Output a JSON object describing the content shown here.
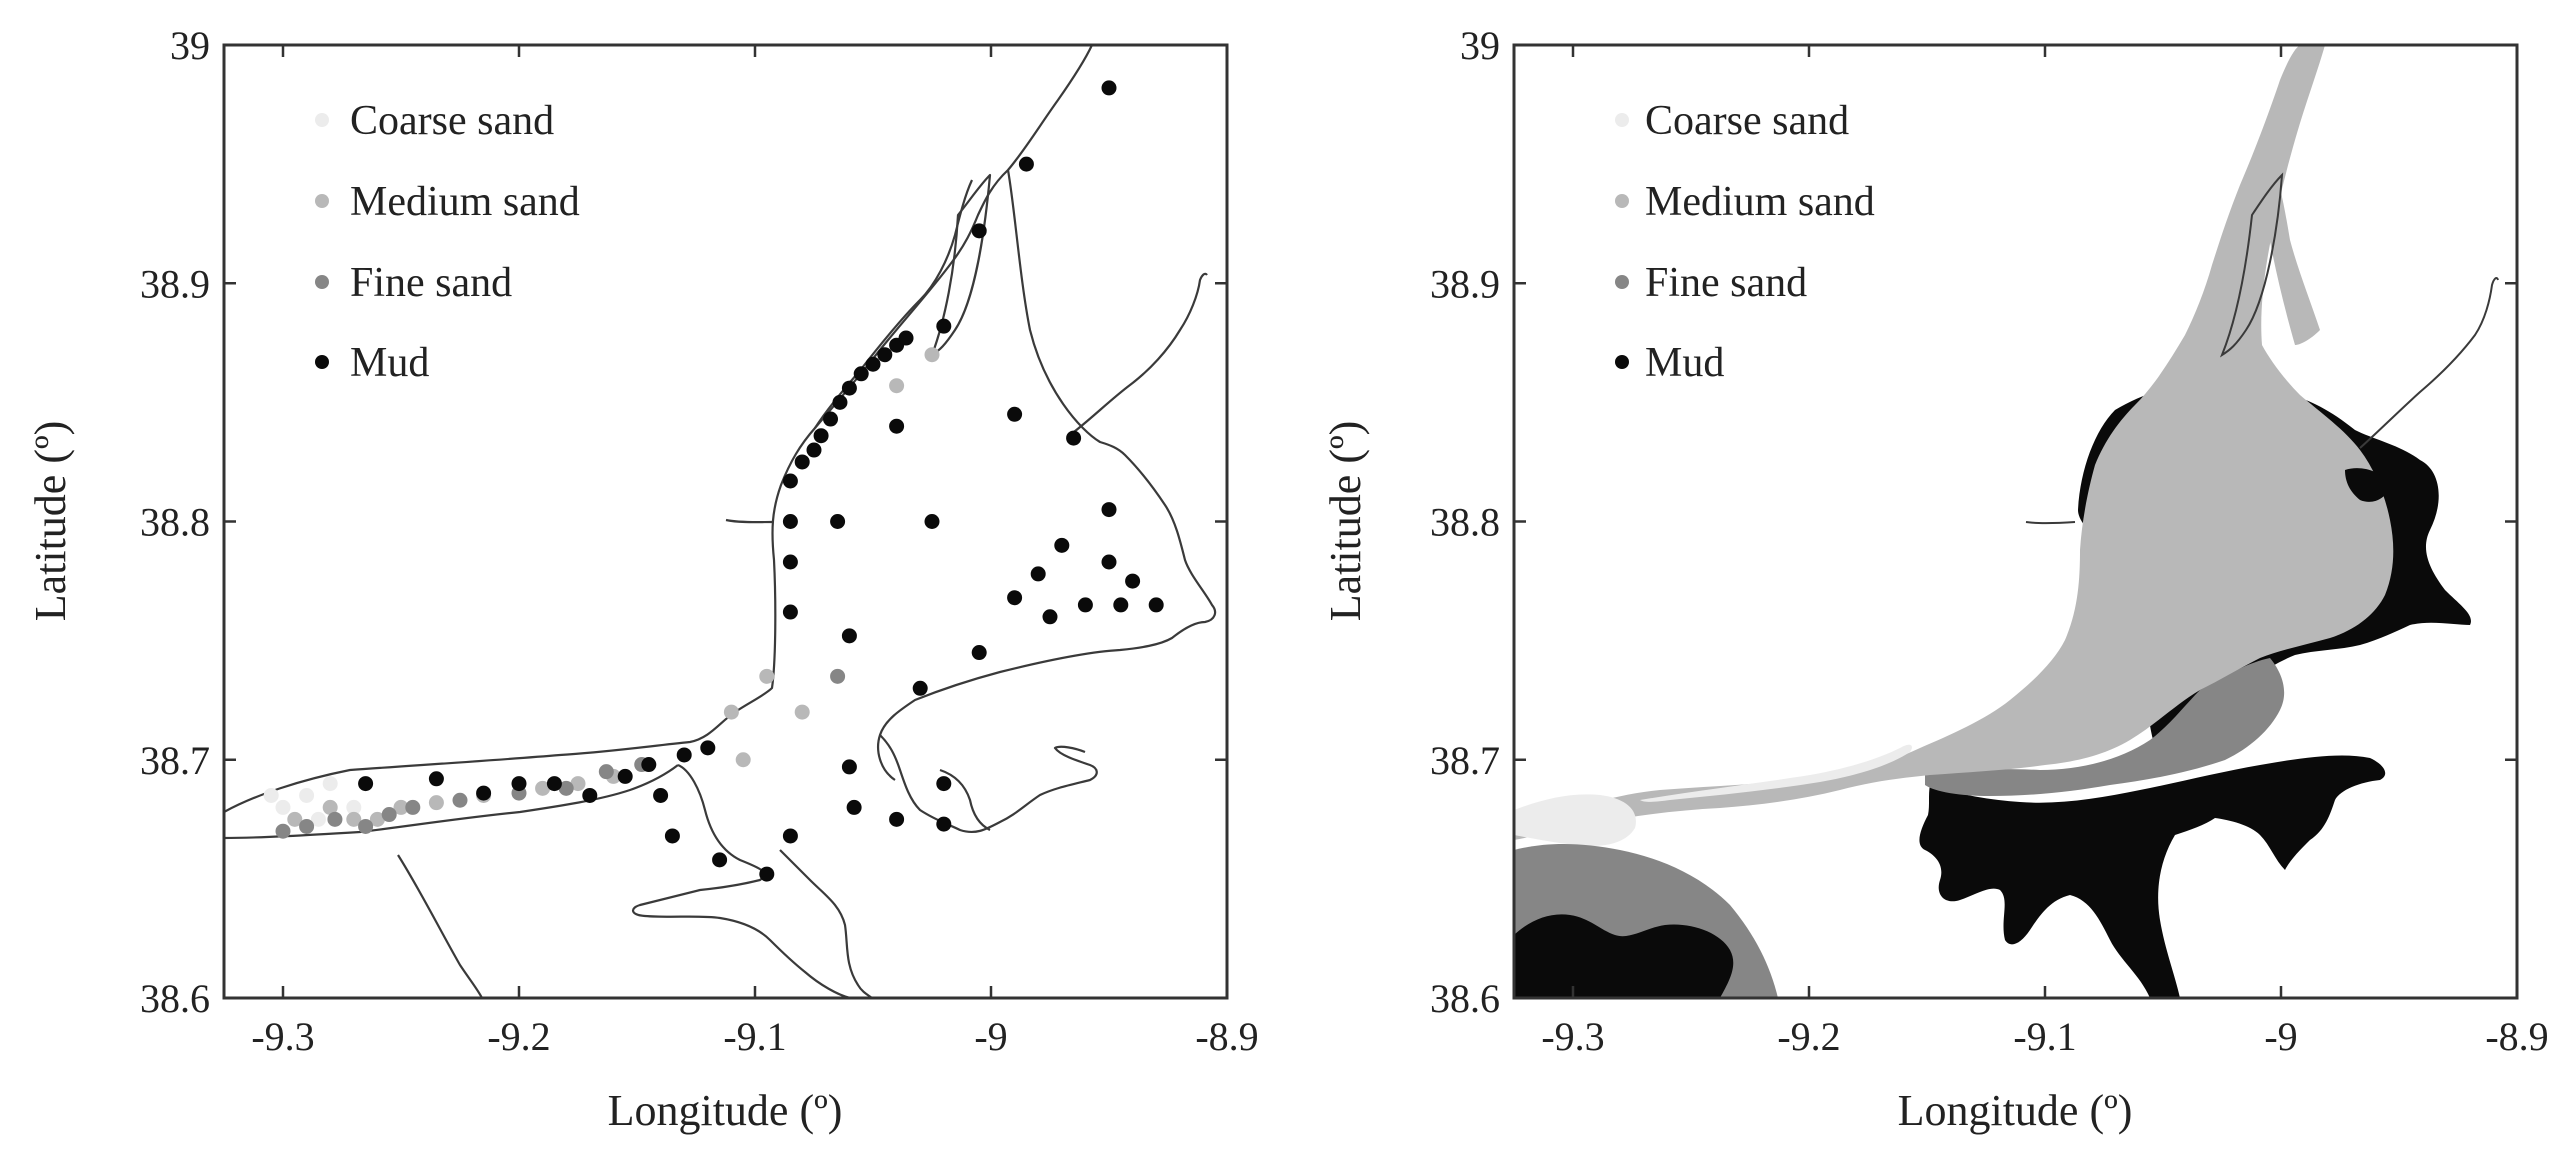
{
  "colors": {
    "coarse": "#ececec",
    "medium": "#b8b8b8",
    "fine": "#868686",
    "mud": "#0a0a0a",
    "coast": "#3a3a3a",
    "frame": "#333333"
  },
  "panels": [
    {
      "id": "left",
      "kind": "sample-points",
      "xlabel": "Longitude (º)",
      "ylabel": "Latitude (º)",
      "xticks": [
        "-9.3",
        "-9.2",
        "-9.1",
        "-9",
        "-8.9"
      ],
      "yticks": [
        "38.6",
        "38.7",
        "38.8",
        "38.9",
        "39"
      ],
      "legend": [
        {
          "label": "Coarse sand",
          "class": "coarse"
        },
        {
          "label": "Medium sand",
          "class": "medium"
        },
        {
          "label": "Fine sand",
          "class": "fine"
        },
        {
          "label": "Mud",
          "class": "mud"
        }
      ]
    },
    {
      "id": "right",
      "kind": "interpolated-map",
      "xlabel": "Longitude (º)",
      "ylabel": "Latitude (º)",
      "xticks": [
        "-9.3",
        "-9.2",
        "-9.1",
        "-9",
        "-8.9"
      ],
      "yticks": [
        "38.6",
        "38.7",
        "38.8",
        "38.9",
        "39"
      ],
      "legend": [
        {
          "label": "Coarse sand",
          "class": "coarse"
        },
        {
          "label": "Medium sand",
          "class": "medium"
        },
        {
          "label": "Fine sand",
          "class": "fine"
        },
        {
          "label": "Mud",
          "class": "mud"
        }
      ]
    }
  ],
  "axes": {
    "xlim": [
      -9.325,
      -8.9
    ],
    "ylim": [
      38.6,
      39.0
    ],
    "xticks": [
      -9.3,
      -9.2,
      -9.1,
      -9.0,
      -8.9
    ],
    "yticks": [
      38.6,
      38.7,
      38.8,
      38.9,
      39.0
    ]
  },
  "sample_points": {
    "coarse": [
      [
        -9.305,
        38.685
      ],
      [
        -9.3,
        38.68
      ],
      [
        -9.29,
        38.685
      ],
      [
        -9.28,
        38.69
      ],
      [
        -9.27,
        38.68
      ],
      [
        -9.285,
        38.675
      ]
    ],
    "medium": [
      [
        -9.295,
        38.675
      ],
      [
        -9.28,
        38.68
      ],
      [
        -9.27,
        38.675
      ],
      [
        -9.26,
        38.675
      ],
      [
        -9.25,
        38.68
      ],
      [
        -9.235,
        38.682
      ],
      [
        -9.215,
        38.685
      ],
      [
        -9.19,
        38.688
      ],
      [
        -9.175,
        38.69
      ],
      [
        -9.16,
        38.693
      ],
      [
        -9.11,
        38.72
      ],
      [
        -9.105,
        38.7
      ],
      [
        -9.095,
        38.735
      ],
      [
        -9.08,
        38.72
      ],
      [
        -9.04,
        38.857
      ],
      [
        -9.025,
        38.87
      ]
    ],
    "fine": [
      [
        -9.3,
        38.67
      ],
      [
        -9.29,
        38.672
      ],
      [
        -9.278,
        38.675
      ],
      [
        -9.265,
        38.672
      ],
      [
        -9.255,
        38.677
      ],
      [
        -9.245,
        38.68
      ],
      [
        -9.225,
        38.683
      ],
      [
        -9.2,
        38.686
      ],
      [
        -9.18,
        38.688
      ],
      [
        -9.163,
        38.695
      ],
      [
        -9.148,
        38.698
      ],
      [
        -9.065,
        38.735
      ]
    ],
    "mud": [
      [
        -9.265,
        38.69
      ],
      [
        -9.235,
        38.692
      ],
      [
        -9.215,
        38.686
      ],
      [
        -9.2,
        38.69
      ],
      [
        -9.185,
        38.69
      ],
      [
        -9.17,
        38.685
      ],
      [
        -9.155,
        38.693
      ],
      [
        -9.145,
        38.698
      ],
      [
        -9.13,
        38.702
      ],
      [
        -9.12,
        38.705
      ],
      [
        -9.14,
        38.685
      ],
      [
        -9.135,
        38.668
      ],
      [
        -9.115,
        38.658
      ],
      [
        -9.095,
        38.652
      ],
      [
        -9.085,
        38.668
      ],
      [
        -9.06,
        38.697
      ],
      [
        -9.058,
        38.68
      ],
      [
        -9.04,
        38.675
      ],
      [
        -9.02,
        38.69
      ],
      [
        -9.02,
        38.673
      ],
      [
        -9.03,
        38.73
      ],
      [
        -9.005,
        38.745
      ],
      [
        -8.99,
        38.768
      ],
      [
        -8.98,
        38.778
      ],
      [
        -8.975,
        38.76
      ],
      [
        -8.97,
        38.79
      ],
      [
        -8.96,
        38.765
      ],
      [
        -8.95,
        38.783
      ],
      [
        -8.945,
        38.765
      ],
      [
        -8.94,
        38.775
      ],
      [
        -8.93,
        38.765
      ],
      [
        -8.95,
        38.805
      ],
      [
        -9.025,
        38.8
      ],
      [
        -9.06,
        38.752
      ],
      [
        -9.065,
        38.8
      ],
      [
        -9.085,
        38.8
      ],
      [
        -9.085,
        38.783
      ],
      [
        -9.085,
        38.762
      ],
      [
        -9.04,
        38.84
      ],
      [
        -9.02,
        38.882
      ],
      [
        -8.99,
        38.845
      ],
      [
        -8.965,
        38.835
      ],
      [
        -9.005,
        38.922
      ],
      [
        -8.985,
        38.95
      ],
      [
        -8.95,
        38.982
      ],
      [
        -9.085,
        38.817
      ],
      [
        -9.08,
        38.825
      ],
      [
        -9.075,
        38.83
      ],
      [
        -9.072,
        38.836
      ],
      [
        -9.068,
        38.843
      ],
      [
        -9.064,
        38.85
      ],
      [
        -9.06,
        38.856
      ],
      [
        -9.055,
        38.862
      ],
      [
        -9.05,
        38.866
      ],
      [
        -9.045,
        38.87
      ],
      [
        -9.04,
        38.874
      ],
      [
        -9.036,
        38.877
      ]
    ]
  }
}
